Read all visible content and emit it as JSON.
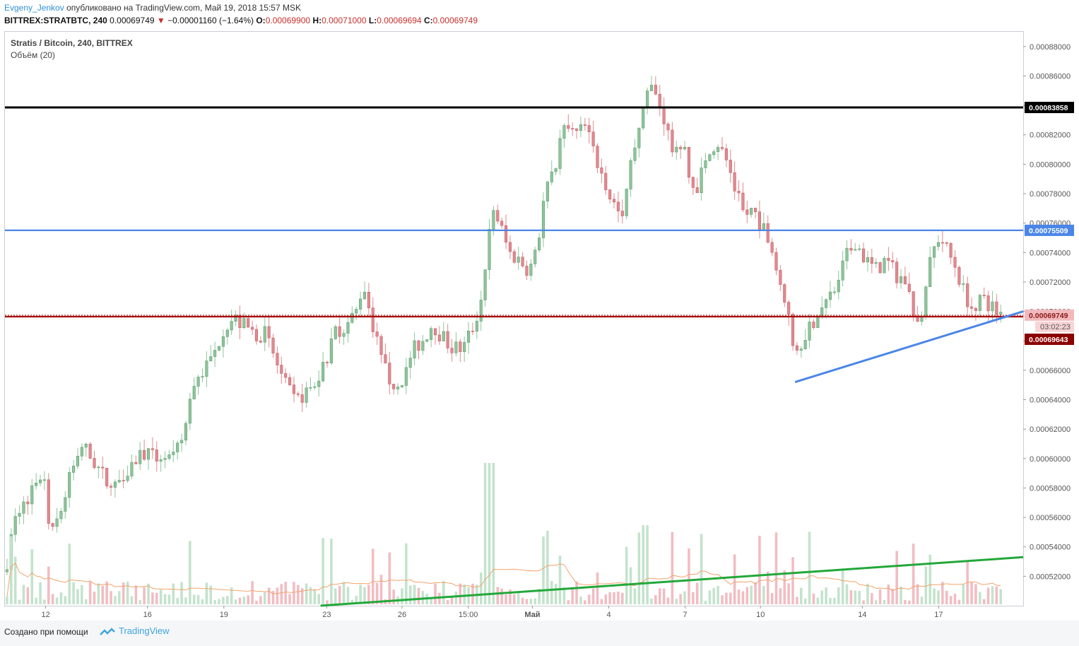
{
  "header": {
    "author": "Evgeny_Jenkov",
    "published_text": "опубликовано на TradingView.com, Май 19, 2018 15:57 MSK",
    "symbol": "BITTREX:STRATBTC, 240",
    "last": "0.00069749",
    "arrow": "▼",
    "change": "−0.00001160 (−1.64%)",
    "o_label": "O:",
    "o_value": "0.00069900",
    "h_label": "H:",
    "h_value": "0.00071000",
    "l_label": "L:",
    "l_value": "0.00069694",
    "c_label": "C:",
    "c_value": "0.00069749"
  },
  "legend": {
    "title": "Stratis / Bitcoin, 240, BITTREX",
    "volume": "Объём (20)"
  },
  "footer": {
    "created_with": "Создано при помощи",
    "brand": "TradingView"
  },
  "chart_data": {
    "type": "candlestick",
    "title": "Stratis / Bitcoin, 240, BITTREX",
    "colors": {
      "up": "#8fc49b",
      "down": "#e08a8f",
      "volume_up": "#c3e3cc",
      "volume_down": "#f2bcc2",
      "volume_ma": "#f2a36b"
    },
    "ylim": [
      0.0005,
      0.00089
    ],
    "y_ticks": [
      "0.00052000",
      "0.00054000",
      "0.00056000",
      "0.00058000",
      "0.00060000",
      "0.00062000",
      "0.00064000",
      "0.00066000",
      "0.00068000",
      "0.00070000",
      "0.00072000",
      "0.00074000",
      "0.00076000",
      "0.00078000",
      "0.00080000",
      "0.00082000",
      "0.00084000",
      "0.00086000",
      "0.00088000"
    ],
    "x_ticks": [
      {
        "label": "12",
        "x": 0.04
      },
      {
        "label": "16",
        "x": 0.14
      },
      {
        "label": "19",
        "x": 0.215
      },
      {
        "label": "23",
        "x": 0.316
      },
      {
        "label": "26",
        "x": 0.39
      },
      {
        "label": "15:00",
        "x": 0.455
      },
      {
        "label": "Май",
        "x": 0.518
      },
      {
        "label": "4",
        "x": 0.593
      },
      {
        "label": "7",
        "x": 0.668
      },
      {
        "label": "10",
        "x": 0.742
      },
      {
        "label": "14",
        "x": 0.842
      },
      {
        "label": "17",
        "x": 0.917
      }
    ],
    "path_points": [
      [
        0.0,
        0.000523
      ],
      [
        0.01,
        0.00056
      ],
      [
        0.02,
        0.00057
      ],
      [
        0.03,
        0.000585
      ],
      [
        0.038,
        0.00059
      ],
      [
        0.045,
        0.000545
      ],
      [
        0.055,
        0.000565
      ],
      [
        0.065,
        0.00059
      ],
      [
        0.075,
        0.00061
      ],
      [
        0.085,
        0.0006
      ],
      [
        0.095,
        0.00059
      ],
      [
        0.105,
        0.000578
      ],
      [
        0.115,
        0.00059
      ],
      [
        0.125,
        0.000597
      ],
      [
        0.135,
        0.000605
      ],
      [
        0.145,
        0.0006
      ],
      [
        0.155,
        0.000603
      ],
      [
        0.165,
        0.000598
      ],
      [
        0.175,
        0.000615
      ],
      [
        0.185,
        0.00065
      ],
      [
        0.195,
        0.00066
      ],
      [
        0.205,
        0.00067
      ],
      [
        0.215,
        0.00069
      ],
      [
        0.225,
        0.000695
      ],
      [
        0.235,
        0.00069
      ],
      [
        0.245,
        0.000685
      ],
      [
        0.255,
        0.000685
      ],
      [
        0.265,
        0.000668
      ],
      [
        0.275,
        0.00065
      ],
      [
        0.285,
        0.000638
      ],
      [
        0.295,
        0.000645
      ],
      [
        0.305,
        0.00065
      ],
      [
        0.315,
        0.000668
      ],
      [
        0.325,
        0.000688
      ],
      [
        0.335,
        0.00069
      ],
      [
        0.345,
        0.0007
      ],
      [
        0.352,
        0.00072
      ],
      [
        0.36,
        0.000695
      ],
      [
        0.37,
        0.000665
      ],
      [
        0.38,
        0.00065
      ],
      [
        0.39,
        0.000655
      ],
      [
        0.4,
        0.000673
      ],
      [
        0.41,
        0.00068
      ],
      [
        0.42,
        0.000692
      ],
      [
        0.43,
        0.000682
      ],
      [
        0.44,
        0.000675
      ],
      [
        0.45,
        0.000675
      ],
      [
        0.46,
        0.00069
      ],
      [
        0.467,
        0.000705
      ],
      [
        0.473,
        0.00074
      ],
      [
        0.48,
        0.00077
      ],
      [
        0.488,
        0.000755
      ],
      [
        0.495,
        0.00074
      ],
      [
        0.505,
        0.000735
      ],
      [
        0.515,
        0.000728
      ],
      [
        0.522,
        0.00074
      ],
      [
        0.53,
        0.00078
      ],
      [
        0.54,
        0.0008
      ],
      [
        0.55,
        0.000825
      ],
      [
        0.56,
        0.00082
      ],
      [
        0.57,
        0.000825
      ],
      [
        0.58,
        0.000805
      ],
      [
        0.59,
        0.000785
      ],
      [
        0.6,
        0.00077
      ],
      [
        0.607,
        0.00076
      ],
      [
        0.615,
        0.00081
      ],
      [
        0.625,
        0.000825
      ],
      [
        0.632,
        0.000855
      ],
      [
        0.64,
        0.000845
      ],
      [
        0.648,
        0.00083
      ],
      [
        0.655,
        0.00081
      ],
      [
        0.665,
        0.000815
      ],
      [
        0.672,
        0.00079
      ],
      [
        0.68,
        0.000785
      ],
      [
        0.69,
        0.00081
      ],
      [
        0.7,
        0.000815
      ],
      [
        0.71,
        0.0008
      ],
      [
        0.718,
        0.00078
      ],
      [
        0.726,
        0.000765
      ],
      [
        0.735,
        0.00077
      ],
      [
        0.745,
        0.000755
      ],
      [
        0.755,
        0.00074
      ],
      [
        0.763,
        0.00072
      ],
      [
        0.77,
        0.000695
      ],
      [
        0.775,
        0.00067
      ],
      [
        0.785,
        0.000685
      ],
      [
        0.795,
        0.000695
      ],
      [
        0.805,
        0.000705
      ],
      [
        0.815,
        0.000715
      ],
      [
        0.825,
        0.000735
      ],
      [
        0.835,
        0.000748
      ],
      [
        0.845,
        0.000735
      ],
      [
        0.855,
        0.000728
      ],
      [
        0.865,
        0.000735
      ],
      [
        0.875,
        0.000725
      ],
      [
        0.885,
        0.00072
      ],
      [
        0.893,
        0.000698
      ],
      [
        0.9,
        0.00069
      ],
      [
        0.908,
        0.000735
      ],
      [
        0.918,
        0.000752
      ],
      [
        0.926,
        0.00074
      ],
      [
        0.934,
        0.00073
      ],
      [
        0.942,
        0.000712
      ],
      [
        0.95,
        0.000703
      ],
      [
        0.958,
        0.00071
      ],
      [
        0.966,
        0.000705
      ],
      [
        0.974,
        0.0007
      ],
      [
        0.98,
        0.000699
      ]
    ],
    "horizontal_levels": [
      {
        "value": 0.00083858,
        "label": "0.00083858",
        "color": "#000000",
        "label_bg": "#000000"
      },
      {
        "value": 0.00075509,
        "label": "0.00075509",
        "color": "#4a86e8",
        "label_bg": "#4a86e8"
      },
      {
        "value": 0.00069643,
        "label": "0.00069643",
        "color": "#a50f0f",
        "label_bg": "#8b0000"
      }
    ],
    "last_price": {
      "value": 0.00069749,
      "label": "0.00069749",
      "countdown": "03:02:23"
    },
    "trendlines": [
      {
        "color": "#4a86e8",
        "from": [
          0.776,
          0.000652
        ],
        "to": [
          1.0,
          0.0007
        ]
      },
      {
        "color": "#22a83a",
        "from": [
          0.31,
          0.0005
        ],
        "to": [
          1.0,
          0.000533
        ]
      }
    ]
  }
}
